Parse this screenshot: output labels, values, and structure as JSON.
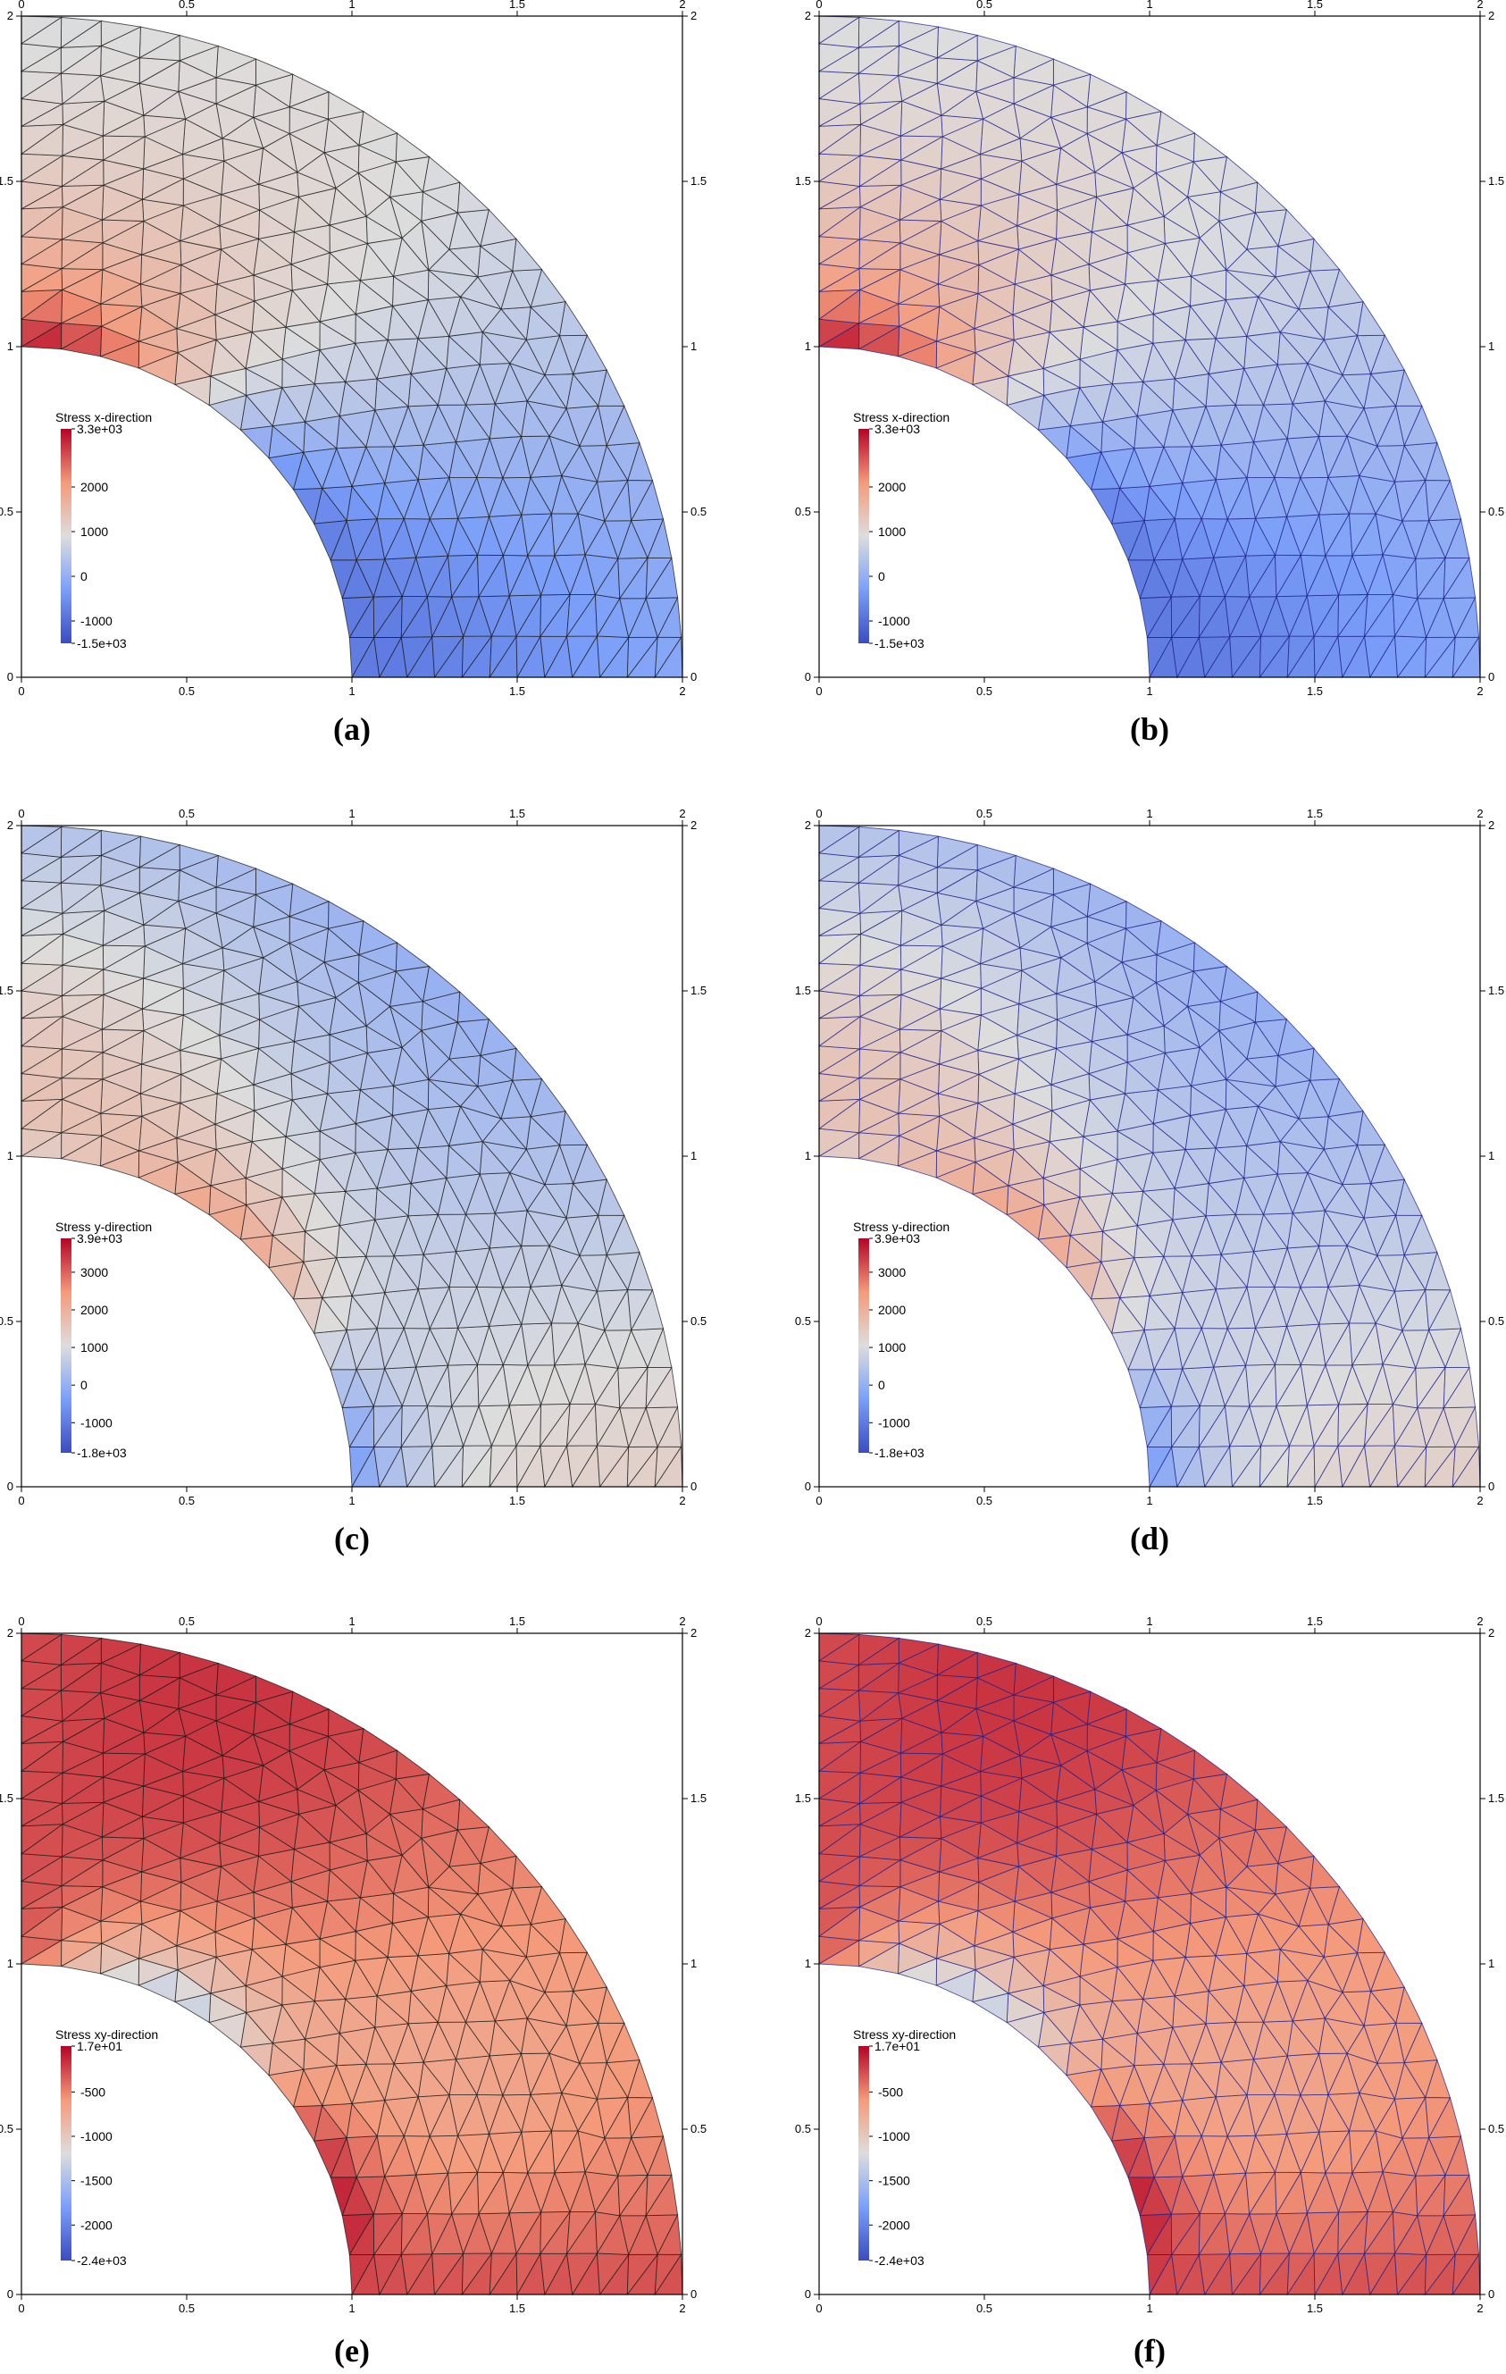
{
  "panels": [
    {
      "id": "a",
      "caption": "(a)",
      "field": "sx",
      "mesh": "black",
      "legend": {
        "title": "Stress x-direction",
        "max_label": "3.3e+03",
        "min_label": "-1.5e+03",
        "ticks": [
          "2000",
          "1000",
          "0",
          "-1000"
        ],
        "range": [
          -1500,
          3300
        ],
        "tick_values": [
          2000,
          1000,
          0,
          -1000
        ]
      }
    },
    {
      "id": "b",
      "caption": "(b)",
      "field": "sx",
      "mesh": "blue",
      "legend": {
        "title": "Stress x-direction",
        "max_label": "3.3e+03",
        "min_label": "-1.5e+03",
        "ticks": [
          "2000",
          "1000",
          "0",
          "-1000"
        ],
        "range": [
          -1500,
          3300
        ],
        "tick_values": [
          2000,
          1000,
          0,
          -1000
        ]
      }
    },
    {
      "id": "c",
      "caption": "(c)",
      "field": "sy",
      "mesh": "black",
      "legend": {
        "title": "Stress y-direction",
        "max_label": "3.9e+03",
        "min_label": "-1.8e+03",
        "ticks": [
          "3000",
          "2000",
          "1000",
          "0",
          "-1000"
        ],
        "range": [
          -1800,
          3900
        ],
        "tick_values": [
          3000,
          2000,
          1000,
          0,
          -1000
        ]
      }
    },
    {
      "id": "d",
      "caption": "(d)",
      "field": "sy",
      "mesh": "blue",
      "legend": {
        "title": "Stress y-direction",
        "max_label": "3.9e+03",
        "min_label": "-1.8e+03",
        "ticks": [
          "3000",
          "2000",
          "1000",
          "0",
          "-1000"
        ],
        "range": [
          -1800,
          3900
        ],
        "tick_values": [
          3000,
          2000,
          1000,
          0,
          -1000
        ]
      }
    },
    {
      "id": "e",
      "caption": "(e)",
      "field": "sxy",
      "mesh": "black",
      "legend": {
        "title": "Stress xy-direction",
        "max_label": "1.7e+01",
        "min_label": "-2.4e+03",
        "ticks": [
          "-500",
          "-1000",
          "-1500",
          "-2000"
        ],
        "range": [
          -2400,
          17
        ],
        "tick_values": [
          -500,
          -1000,
          -1500,
          -2000
        ]
      }
    },
    {
      "id": "f",
      "caption": "(f)",
      "field": "sxy",
      "mesh": "blue",
      "legend": {
        "title": "Stress xy-direction",
        "max_label": "1.7e+01",
        "min_label": "-2.4e+03",
        "ticks": [
          "-500",
          "-1000",
          "-1500",
          "-2000"
        ],
        "range": [
          -2400,
          17
        ],
        "tick_values": [
          -500,
          -1000,
          -1500,
          -2000
        ]
      }
    }
  ],
  "axis_ticks": [
    "0",
    "0.5",
    "1",
    "1.5",
    "2"
  ],
  "axis_tick_values": [
    0,
    0.5,
    1,
    1.5,
    2
  ],
  "domain": {
    "inner_radius": 1,
    "outer_radius": 2,
    "x_range": [
      0,
      2
    ],
    "y_range": [
      0,
      2
    ]
  },
  "colors": {
    "high": "#b40426",
    "mid": "#dddddd",
    "low": "#3b4cc0",
    "mesh_black": "#1a1a1a",
    "mesh_blue": "#1c1f8a"
  }
}
